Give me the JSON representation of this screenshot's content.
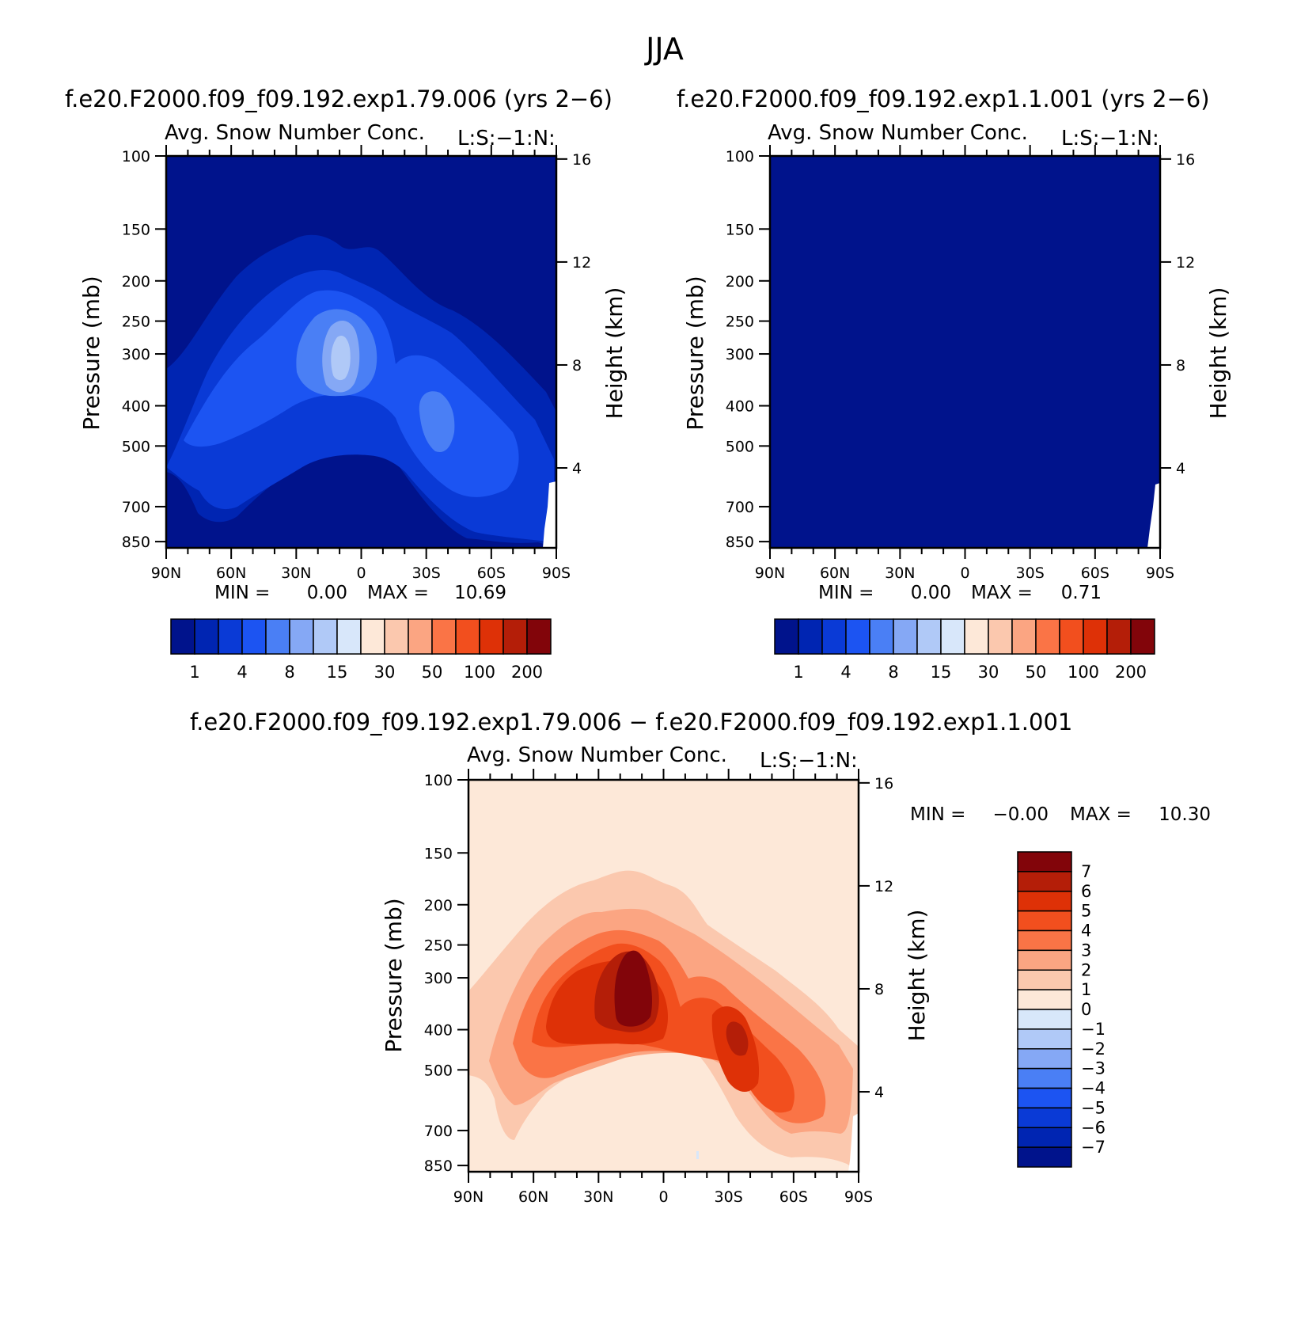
{
  "figure": {
    "title": "JJA",
    "left_run_title": "f.e20.F2000.f09_f09.192.exp1.79.006 (yrs 2−6)",
    "right_run_title": "f.e20.F2000.f09_f09.192.exp1.1.001 (yrs 2−6)",
    "diff_title": "f.e20.F2000.f09_f09.192.exp1.79.006 − f.e20.F2000.f09_f09.192.exp1.1.001"
  },
  "panels": [
    {
      "variable": "Avg. Snow Number Conc.",
      "subtitle": "L:S:−1:N:",
      "ylabel": "Pressure (mb)",
      "y2label": "Height (km)",
      "min_text": "MIN =",
      "min_value": "0.00",
      "max_text": "MAX =",
      "max_value": "10.69",
      "colorbar_labels": [
        "1",
        "4",
        "8",
        "15",
        "30",
        "50",
        "100",
        "200"
      ]
    },
    {
      "variable": "Avg. Snow Number Conc.",
      "subtitle": "L:S:−1:N:",
      "ylabel": "Pressure (mb)",
      "y2label": "Height (km)",
      "min_text": "MIN =",
      "min_value": "0.00",
      "max_text": "MAX =",
      "max_value": "0.71",
      "colorbar_labels": [
        "1",
        "4",
        "8",
        "15",
        "30",
        "50",
        "100",
        "200"
      ]
    },
    {
      "variable": "Avg. Snow Number Conc.",
      "subtitle": "L:S:−1:N:",
      "ylabel": "Pressure (mb)",
      "y2label": "Height (km)",
      "min_text": "MIN =",
      "min_value": "−0.00",
      "max_text": "MAX =",
      "max_value": "10.30",
      "colorbar_labels": [
        "7",
        "6",
        "5",
        "4",
        "3",
        "2",
        "1",
        "0",
        "−1",
        "−2",
        "−3",
        "−4",
        "−5",
        "−6",
        "−7"
      ]
    }
  ],
  "colors": {
    "seq": [
      "#00138c",
      "#0025b2",
      "#0a3ad6",
      "#1c54f2",
      "#4a7ff5",
      "#85a8f5",
      "#b0c9f7",
      "#d8e7fa",
      "#fde8d8",
      "#fbc8ae",
      "#fba582",
      "#fa7446",
      "#f24f1e",
      "#de3107",
      "#b41e08",
      "#82050a"
    ],
    "diff": [
      "#82050a",
      "#b41e08",
      "#de3107",
      "#f24f1e",
      "#fa7446",
      "#fba582",
      "#fbc8ae",
      "#fde8d8",
      "#d8e7fa",
      "#b0c9f7",
      "#85a8f5",
      "#4a7ff5",
      "#1c54f2",
      "#0a3ad6",
      "#0025b2",
      "#00138c"
    ]
  },
  "chart_data": [
    {
      "type": "heatmap",
      "title": "Avg. Snow Number Conc.",
      "subtitle": "L:S:−1:N:",
      "xticks": [
        "90N",
        "60N",
        "30N",
        "0",
        "30S",
        "60S",
        "90S"
      ],
      "yticks": [
        100,
        150,
        200,
        250,
        300,
        400,
        500,
        700,
        850
      ],
      "y2ticks": [
        16,
        12,
        8,
        4
      ],
      "ylabel": "Pressure (mb)",
      "y2label": "Height (km)",
      "ylog": true,
      "ylim": [
        880,
        100
      ],
      "background_level": 0,
      "min": 0.0,
      "max": 10.69,
      "levels": [
        1,
        2,
        4,
        6,
        8,
        10,
        15,
        20,
        30,
        40,
        50,
        70,
        100,
        150,
        200
      ],
      "features": [
        {
          "lat": 8,
          "p": 345,
          "level": 7,
          "note": "peak"
        },
        {
          "lat": 47,
          "p": 390,
          "level": 5
        },
        {
          "lat": 55,
          "p": 250,
          "level": 5
        },
        {
          "lat": -33,
          "p": 470,
          "level": 5
        }
      ]
    },
    {
      "type": "heatmap",
      "title": "Avg. Snow Number Conc.",
      "subtitle": "L:S:−1:N:",
      "xticks": [
        "90N",
        "60N",
        "30N",
        "0",
        "30S",
        "60S",
        "90S"
      ],
      "yticks": [
        100,
        150,
        200,
        250,
        300,
        400,
        500,
        700,
        850
      ],
      "y2ticks": [
        16,
        12,
        8,
        4
      ],
      "ylabel": "Pressure (mb)",
      "y2label": "Height (km)",
      "ylog": true,
      "ylim": [
        880,
        100
      ],
      "background_level": 0,
      "min": 0.0,
      "max": 0.71,
      "levels": [
        1,
        2,
        4,
        6,
        8,
        10,
        15,
        20,
        30,
        40,
        50,
        70,
        100,
        150,
        200
      ],
      "features": []
    },
    {
      "type": "heatmap",
      "title": "Avg. Snow Number Conc.",
      "subtitle": "L:S:−1:N:",
      "xticks": [
        "90N",
        "60N",
        "30N",
        "0",
        "30S",
        "60S",
        "90S"
      ],
      "yticks": [
        100,
        150,
        200,
        250,
        300,
        400,
        500,
        700,
        850
      ],
      "y2ticks": [
        16,
        12,
        8,
        4
      ],
      "ylabel": "Pressure (mb)",
      "y2label": "Height (km)",
      "ylog": true,
      "ylim": [
        880,
        100
      ],
      "background_level": 0,
      "min": -0.0,
      "max": 10.3,
      "levels": [
        -7,
        -6,
        -5,
        -4,
        -3,
        -2,
        -1,
        0,
        1,
        2,
        3,
        4,
        5,
        6,
        7
      ],
      "features": [
        {
          "lat": 8,
          "p": 340,
          "level": 7,
          "note": "peak"
        },
        {
          "lat": -33,
          "p": 440,
          "level": 6
        }
      ]
    }
  ]
}
